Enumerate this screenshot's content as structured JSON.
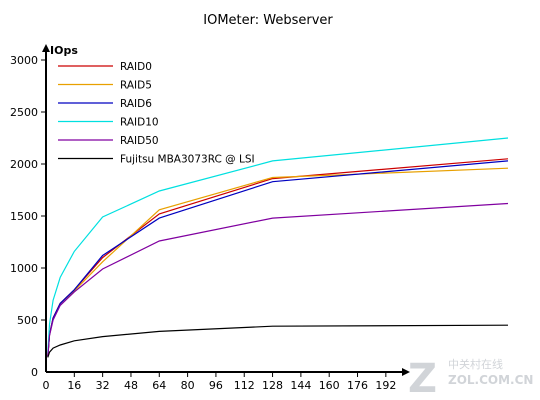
{
  "chart_data": {
    "type": "line",
    "title": "IOMeter: Webserver",
    "xlabel": "",
    "ylabel": "IOps",
    "x": [
      1,
      2,
      4,
      8,
      16,
      32,
      64,
      128,
      256
    ],
    "xlim": [
      0,
      200
    ],
    "ylim": [
      0,
      3000
    ],
    "xticks": [
      0,
      16,
      32,
      48,
      64,
      80,
      96,
      112,
      128,
      144,
      160,
      176,
      192
    ],
    "yticks": [
      0,
      500,
      1000,
      1500,
      2000,
      2500,
      3000
    ],
    "grid": false,
    "legend_position": "top-left",
    "series": [
      {
        "name": "RAID0",
        "color": "#cc0000",
        "values": [
          150,
          360,
          520,
          660,
          790,
          1100,
          1520,
          1860,
          2050
        ]
      },
      {
        "name": "RAID5",
        "color": "#e8a000",
        "values": [
          150,
          360,
          520,
          660,
          780,
          1060,
          1560,
          1870,
          1960
        ]
      },
      {
        "name": "RAID6",
        "color": "#0000c0",
        "values": [
          150,
          360,
          520,
          660,
          790,
          1120,
          1480,
          1830,
          2030
        ]
      },
      {
        "name": "RAID10",
        "color": "#00e0e0",
        "values": [
          180,
          460,
          690,
          910,
          1160,
          1490,
          1740,
          2030,
          2250
        ]
      },
      {
        "name": "RAID50",
        "color": "#8000a0",
        "values": [
          150,
          350,
          500,
          640,
          770,
          990,
          1260,
          1480,
          1620
        ]
      },
      {
        "name": "Fujitsu MBA3073RC @ LSI",
        "color": "#000000",
        "values": [
          140,
          190,
          230,
          260,
          300,
          340,
          390,
          440,
          450
        ]
      }
    ]
  },
  "watermark": {
    "cn": "中关村在线",
    "site": "ZOL.COM.CN"
  }
}
